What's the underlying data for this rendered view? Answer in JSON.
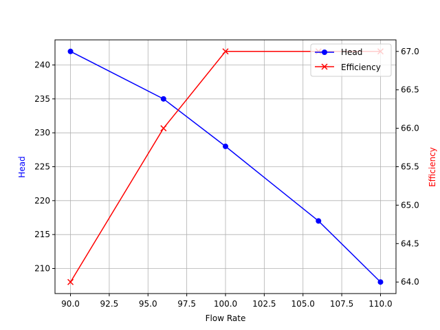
{
  "chart_data": {
    "type": "line",
    "title": "",
    "xlabel": "Flow Rate",
    "ylabel": "Head",
    "y2label": "Efficiency",
    "x": [
      90,
      96,
      100,
      106,
      110
    ],
    "series": [
      {
        "name": "Head",
        "axis": "left",
        "color": "#0000ff",
        "marker": "o",
        "values": [
          242,
          235,
          228,
          217,
          208
        ]
      },
      {
        "name": "Efficiency",
        "axis": "right",
        "color": "#ff0000",
        "marker": "x",
        "values": [
          64,
          66,
          67,
          67,
          67
        ]
      }
    ],
    "xlim": [
      89,
      111
    ],
    "ylim": [
      206.3,
      243.7
    ],
    "y2lim": [
      63.85,
      67.15
    ],
    "xticks": [
      "90.0",
      "92.5",
      "95.0",
      "97.5",
      "100.0",
      "102.5",
      "105.0",
      "107.5",
      "110.0"
    ],
    "yticks": [
      "210",
      "215",
      "220",
      "225",
      "230",
      "235",
      "240"
    ],
    "y2ticks": [
      "64.0",
      "64.5",
      "65.0",
      "65.5",
      "66.0",
      "66.5",
      "67.0"
    ],
    "grid": true,
    "legend_position": "upper right"
  },
  "colors": {
    "head": "#0000ff",
    "efficiency": "#ff0000",
    "grid": "#b0b0b0"
  }
}
